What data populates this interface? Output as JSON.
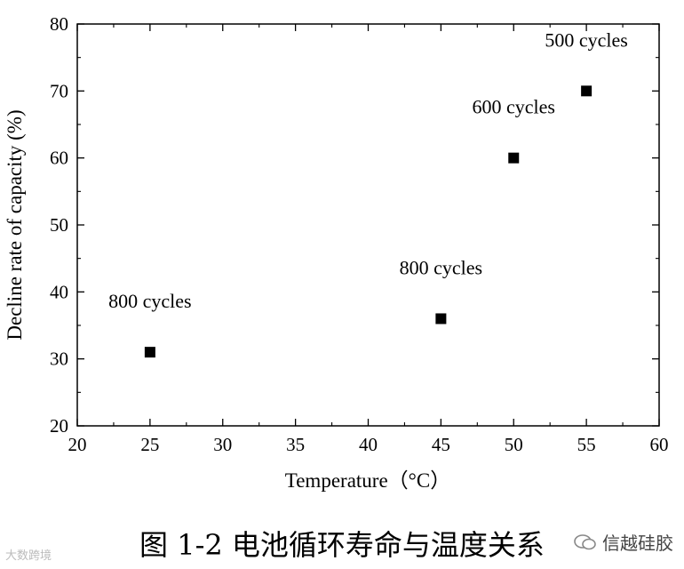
{
  "chart_data": {
    "type": "scatter",
    "xlabel": "Temperature（°C）",
    "ylabel": "Decline rate of capacity (%)",
    "xlim": [
      20,
      60
    ],
    "ylim": [
      20,
      80
    ],
    "xticks": [
      20,
      25,
      30,
      35,
      40,
      45,
      50,
      55,
      60
    ],
    "yticks": [
      20,
      30,
      40,
      50,
      60,
      70,
      80
    ],
    "grid": false,
    "marker": "square",
    "marker_color": "#000000",
    "points": [
      {
        "x": 25,
        "y": 31,
        "label": "800 cycles"
      },
      {
        "x": 45,
        "y": 36,
        "label": "800 cycles"
      },
      {
        "x": 50,
        "y": 60,
        "label": "600 cycles"
      },
      {
        "x": 55,
        "y": 70,
        "label": "500 cycles"
      }
    ]
  },
  "caption": "图 1-2 电池循环寿命与温度关系",
  "watermark_left": "大数跨境",
  "watermark_right": "信越硅胶"
}
